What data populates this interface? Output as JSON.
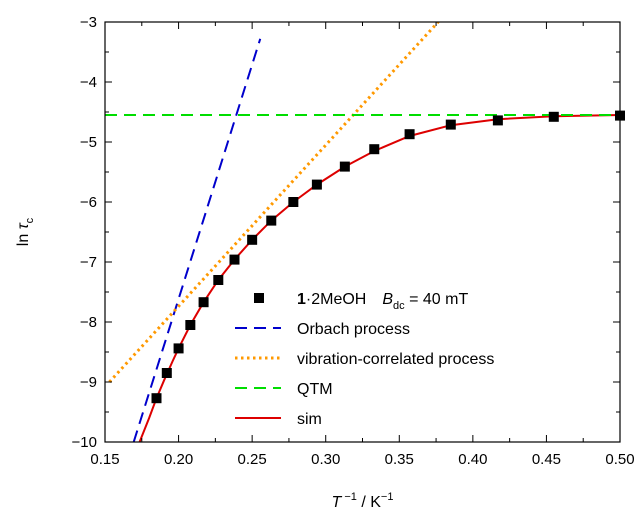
{
  "chart_data": {
    "type": "scatter",
    "title": "",
    "xlabel_parts": {
      "main": "T",
      "sup": "−1",
      "unit": " / K",
      "unit_sup": "−1"
    },
    "ylabel_parts": {
      "main": "ln ",
      "tau": "τ",
      "sub": "c"
    },
    "xlim": [
      0.15,
      0.5
    ],
    "ylim": [
      -10,
      -3
    ],
    "xticks": [
      0.15,
      0.2,
      0.25,
      0.3,
      0.35,
      0.4,
      0.45,
      0.5
    ],
    "xtick_labels": [
      "0.15",
      "0.20",
      "0.25",
      "0.30",
      "0.35",
      "0.40",
      "0.45",
      "0.50"
    ],
    "yticks": [
      -3,
      -4,
      -5,
      -6,
      -7,
      -8,
      -9,
      -10
    ],
    "ytick_labels": [
      "−3",
      "−4",
      "−5",
      "−6",
      "−7",
      "−8",
      "−9",
      "−10"
    ],
    "grid": false,
    "legend_position": "bottom-center",
    "series": [
      {
        "key": "data",
        "label_bold": "1",
        "label_rest": "·2MeOH",
        "label_field": "B",
        "label_field_sub": "dc",
        "label_field_value": " = 40 mT",
        "marker": "square",
        "color": "#000000",
        "x": [
          0.185,
          0.192,
          0.2,
          0.208,
          0.217,
          0.227,
          0.238,
          0.25,
          0.263,
          0.278,
          0.294,
          0.313,
          0.333,
          0.357,
          0.385,
          0.417,
          0.455,
          0.5
        ],
        "y": [
          -9.27,
          -8.85,
          -8.44,
          -8.05,
          -7.67,
          -7.3,
          -6.96,
          -6.63,
          -6.31,
          -6.0,
          -5.71,
          -5.41,
          -5.12,
          -4.87,
          -4.71,
          -4.64,
          -4.58,
          -4.56
        ]
      },
      {
        "key": "orbach",
        "name": "Orbach process",
        "style": "dashed",
        "color": "#0000cc",
        "x": [
          0.1695,
          0.2555
        ],
        "y": [
          -10.0,
          -3.28
        ]
      },
      {
        "key": "vibration",
        "name": "vibration-correlated process",
        "style": "dotted",
        "color": "#ff9900",
        "x": [
          0.153,
          0.382
        ],
        "y": [
          -9.0,
          -2.85
        ]
      },
      {
        "key": "qtm",
        "name": "QTM",
        "style": "dashed",
        "color": "#00dd00",
        "x": [
          0.15,
          0.5
        ],
        "y": [
          -4.55,
          -4.55
        ]
      },
      {
        "key": "sim",
        "name": "sim",
        "style": "solid",
        "color": "#dd0000",
        "x": [
          0.1735,
          0.18,
          0.185,
          0.19,
          0.196,
          0.2,
          0.208,
          0.217,
          0.227,
          0.238,
          0.25,
          0.263,
          0.278,
          0.294,
          0.313,
          0.333,
          0.357,
          0.385,
          0.417,
          0.455,
          0.5
        ],
        "y": [
          -10.0,
          -9.6,
          -9.27,
          -8.98,
          -8.65,
          -8.44,
          -8.05,
          -7.67,
          -7.3,
          -6.96,
          -6.63,
          -6.31,
          -6.0,
          -5.71,
          -5.41,
          -5.15,
          -4.9,
          -4.72,
          -4.62,
          -4.57,
          -4.55
        ]
      }
    ]
  }
}
